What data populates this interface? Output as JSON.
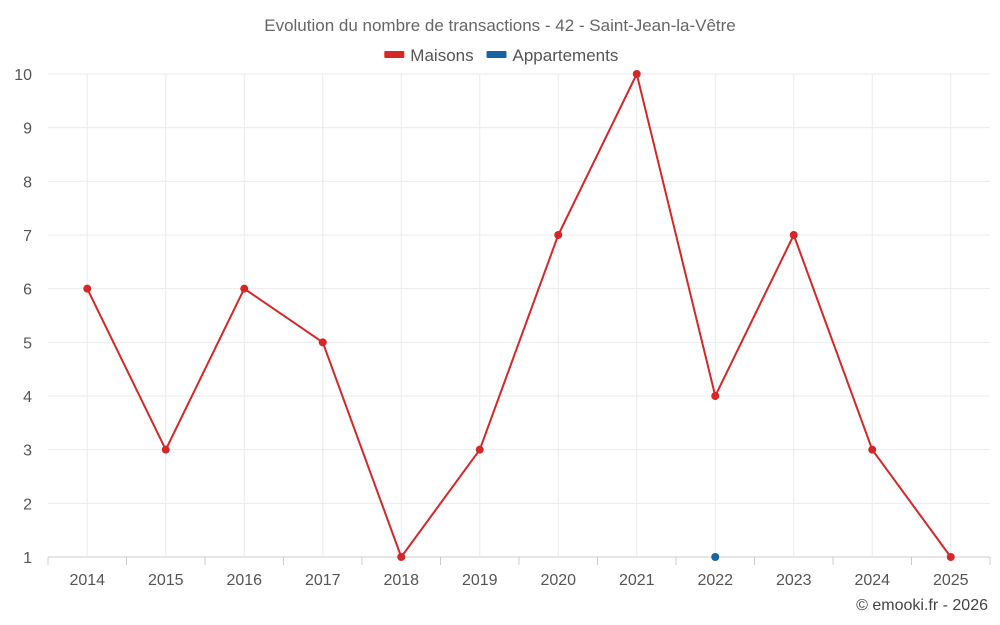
{
  "chart_data": {
    "type": "line",
    "title": "Evolution du nombre de transactions - 42 - Saint-Jean-la-Vêtre",
    "x": [
      "2014",
      "2015",
      "2016",
      "2017",
      "2018",
      "2019",
      "2020",
      "2021",
      "2022",
      "2023",
      "2024",
      "2025"
    ],
    "ylim": [
      1,
      10
    ],
    "yticks": [
      1,
      2,
      3,
      4,
      5,
      6,
      7,
      8,
      9,
      10
    ],
    "grid": true,
    "legend_position": "top-center",
    "series": [
      {
        "name": "Maisons",
        "color": "#d62728",
        "values": [
          6,
          3,
          6,
          5,
          1,
          3,
          7,
          10,
          4,
          7,
          3,
          1
        ]
      },
      {
        "name": "Appartements",
        "color": "#1565a3",
        "values": [
          null,
          null,
          null,
          null,
          null,
          null,
          null,
          null,
          1,
          null,
          null,
          null
        ]
      }
    ]
  },
  "credit": "© emooki.fr - 2026"
}
